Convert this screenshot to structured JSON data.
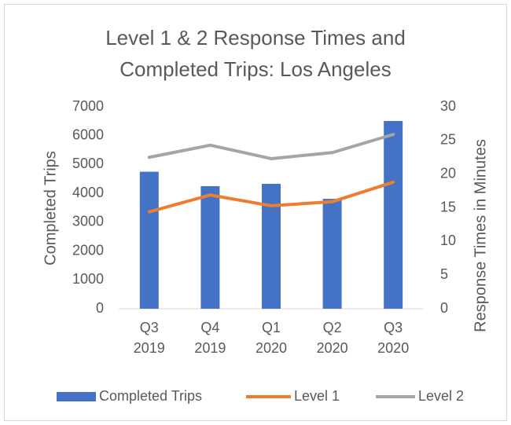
{
  "chart_data": {
    "type": "bar_line",
    "title": "Level 1 & 2 Response Times and Completed Trips: Los Angeles",
    "categories": [
      "Q3 2019",
      "Q4 2019",
      "Q1 2020",
      "Q2 2020",
      "Q3 2020"
    ],
    "ylabel": "Completed Trips",
    "y2label": "Response Times in Minutes",
    "ylim": [
      0,
      7000
    ],
    "yticks": [
      0,
      1000,
      2000,
      3000,
      4000,
      5000,
      6000,
      7000
    ],
    "y2lim": [
      0,
      30
    ],
    "y2ticks": [
      0,
      5,
      10,
      15,
      20,
      25,
      30
    ],
    "grid": false,
    "legend": "bottom",
    "series": [
      {
        "name": "Completed Trips",
        "type": "bar",
        "color": "#4472c4",
        "values": [
          4750,
          4250,
          4330,
          3810,
          6510
        ]
      },
      {
        "name": "Level 1",
        "type": "line",
        "axis": "y2",
        "color": "#ed7d31",
        "values": [
          14.4,
          16.9,
          15.3,
          15.9,
          18.8
        ]
      },
      {
        "name": "Level 2",
        "type": "line",
        "axis": "y2",
        "color": "#a5a5a5",
        "values": [
          22.5,
          24.3,
          22.3,
          23.2,
          25.9
        ]
      }
    ]
  }
}
